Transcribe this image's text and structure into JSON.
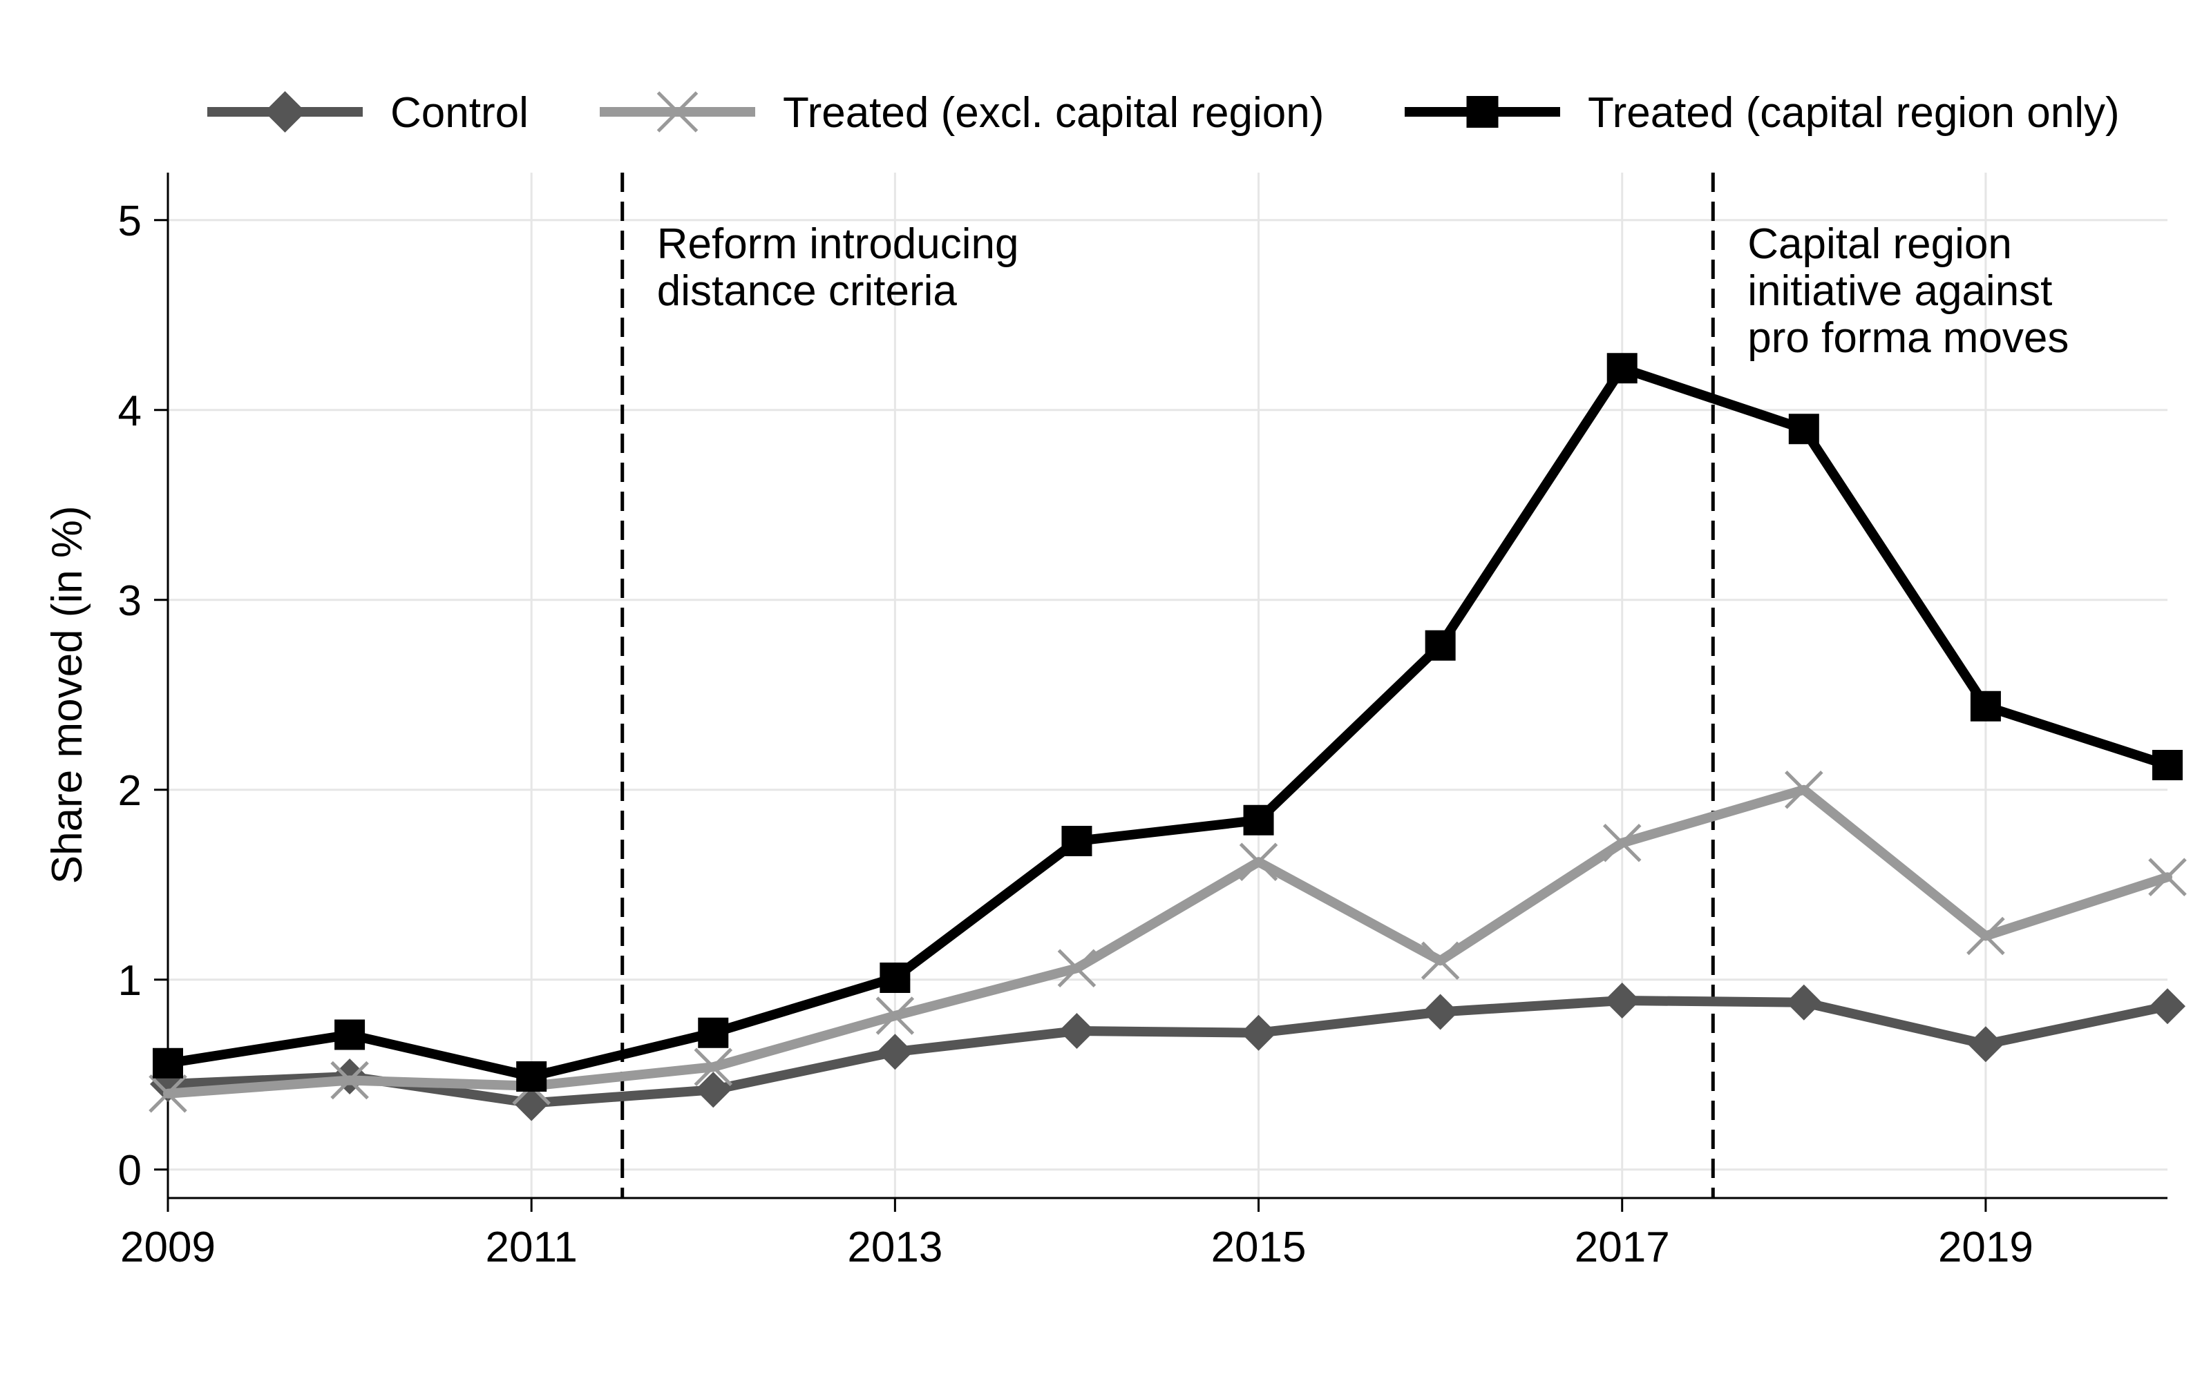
{
  "chart_data": {
    "type": "line",
    "title": "",
    "xlabel": "",
    "ylabel": "Share moved (in %)",
    "xlim": [
      2009,
      2020
    ],
    "ylim": [
      -0.15,
      5.25
    ],
    "x_ticks": [
      2009,
      2011,
      2013,
      2015,
      2017,
      2019
    ],
    "x_tick_labels": [
      "2009",
      "2011",
      "2013",
      "2015",
      "2017",
      "2019"
    ],
    "y_ticks": [
      0,
      1,
      2,
      3,
      4,
      5
    ],
    "y_tick_labels": [
      "0",
      "1",
      "2",
      "3",
      "4",
      "5"
    ],
    "grid": true,
    "legend_position": "top",
    "x": [
      2009,
      2010,
      2011,
      2012,
      2013,
      2014,
      2015,
      2016,
      2017,
      2018,
      2019,
      2020
    ],
    "series": [
      {
        "name": "Control",
        "color": "#555555",
        "marker": "diamond",
        "values": [
          0.45,
          0.49,
          0.35,
          0.42,
          0.62,
          0.73,
          0.72,
          0.83,
          0.89,
          0.88,
          0.66,
          0.86
        ]
      },
      {
        "name": "Treated (excl. capital region)",
        "color": "#999999",
        "marker": "x",
        "values": [
          0.4,
          0.47,
          0.44,
          0.54,
          0.81,
          1.06,
          1.62,
          1.1,
          1.72,
          2.0,
          1.23,
          1.54
        ]
      },
      {
        "name": "Treated (capital region only)",
        "color": "#000000",
        "marker": "square",
        "values": [
          0.56,
          0.71,
          0.49,
          0.72,
          1.01,
          1.73,
          1.84,
          2.76,
          4.22,
          3.9,
          2.44,
          2.13
        ]
      }
    ],
    "vlines": [
      {
        "x": 2011.5,
        "label_lines": [
          "Reform introducing",
          "distance criteria"
        ]
      },
      {
        "x": 2017.5,
        "label_lines": [
          "Capital region",
          "initiative against",
          "pro forma moves"
        ]
      }
    ]
  }
}
